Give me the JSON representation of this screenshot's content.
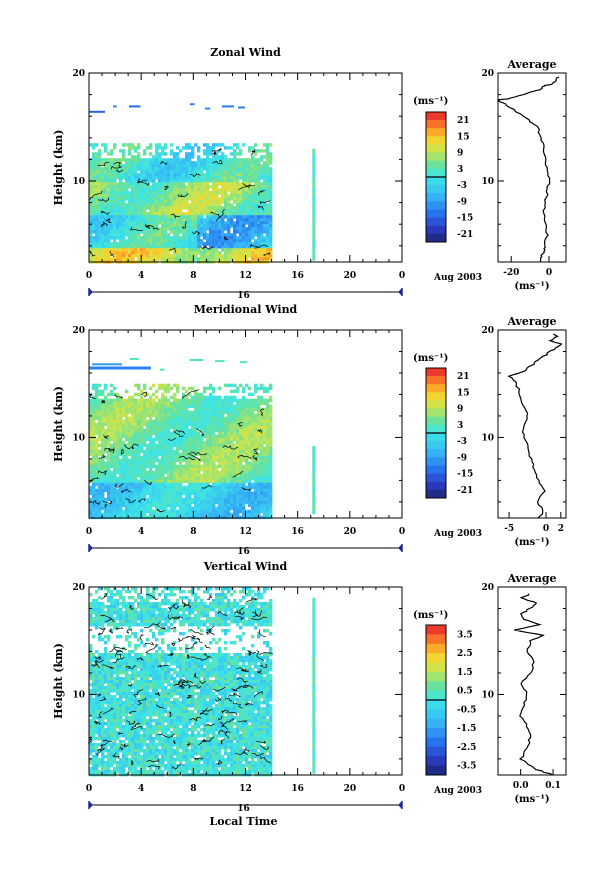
{
  "chart_data": [
    {
      "type": "heatmap",
      "title": "Zonal Wind",
      "ylabel": "Height (km)",
      "ylim": [
        2.5,
        20
      ],
      "xlim": [
        0,
        24
      ],
      "x_ticks": [
        "0",
        "4",
        "8",
        "12",
        "16",
        "20",
        "0"
      ],
      "y_ticks": [
        "10",
        "20"
      ],
      "date_tick": "16",
      "date_label": "Aug 2003",
      "colorbar": {
        "unit": "(ms⁻¹)",
        "ticks": [
          "21",
          "15",
          "9",
          "3",
          "-3",
          "-9",
          "-15",
          "-21"
        ],
        "range": [
          -24,
          24
        ]
      },
      "average": {
        "title": "Average",
        "xlabel": "(ms⁻¹)",
        "x_ticks": [
          "-20",
          "0"
        ],
        "xlim": [
          -27,
          9
        ],
        "y_ticks": [
          "10",
          "20"
        ],
        "profile": [
          [
            -5,
            2.5
          ],
          [
            -4,
            3
          ],
          [
            -3,
            3.5
          ],
          [
            -2,
            4
          ],
          [
            -1,
            5
          ],
          [
            -2,
            6
          ],
          [
            -3,
            7
          ],
          [
            -2,
            8
          ],
          [
            -1,
            9
          ],
          [
            0,
            10
          ],
          [
            -1,
            11
          ],
          [
            -2,
            12
          ],
          [
            -3,
            13
          ],
          [
            -4,
            14
          ],
          [
            -6,
            15
          ],
          [
            -10,
            15.5
          ],
          [
            -14,
            16
          ],
          [
            -18,
            16.5
          ],
          [
            -22,
            17
          ],
          [
            -28,
            17.5
          ],
          [
            -22,
            17.6
          ],
          [
            -14,
            18
          ],
          [
            -8,
            18.3
          ],
          [
            -4,
            18.5
          ],
          [
            -3,
            18.8
          ],
          [
            2,
            19
          ],
          [
            4,
            19.4
          ],
          [
            5,
            19.7
          ]
        ]
      },
      "data_extent": {
        "x_end": 14,
        "y_top": 13.5,
        "isolated_x": 17.2
      }
    },
    {
      "type": "heatmap",
      "title": "Meridional Wind",
      "ylabel": "Height (km)",
      "ylim": [
        2.5,
        20
      ],
      "xlim": [
        0,
        24
      ],
      "x_ticks": [
        "0",
        "4",
        "8",
        "12",
        "16",
        "20",
        "0"
      ],
      "y_ticks": [
        "10",
        "20"
      ],
      "date_tick": "16",
      "date_label": "Aug 2003",
      "colorbar": {
        "unit": "(ms⁻¹)",
        "ticks": [
          "21",
          "15",
          "9",
          "3",
          "-3",
          "-9",
          "-15",
          "-21"
        ],
        "range": [
          -24,
          24
        ]
      },
      "average": {
        "title": "Average",
        "xlabel": "(ms⁻¹)",
        "x_ticks": [
          "-5",
          "0",
          "2"
        ],
        "xlim": [
          -6.5,
          2.7
        ],
        "y_ticks": [
          "10",
          "20"
        ],
        "profile": [
          [
            -1,
            2.5
          ],
          [
            -0.5,
            3
          ],
          [
            -1,
            4
          ],
          [
            -0.3,
            5
          ],
          [
            -1,
            6
          ],
          [
            -1.5,
            7
          ],
          [
            -2,
            8
          ],
          [
            -2.5,
            9
          ],
          [
            -3,
            10
          ],
          [
            -3,
            11
          ],
          [
            -2.5,
            12
          ],
          [
            -3,
            13
          ],
          [
            -3.5,
            14
          ],
          [
            -4,
            15
          ],
          [
            -5,
            15.7
          ],
          [
            -3,
            16.2
          ],
          [
            -2,
            16.7
          ],
          [
            -1,
            17.2
          ],
          [
            0,
            17.7
          ],
          [
            1,
            18.2
          ],
          [
            2,
            18.7
          ],
          [
            0.5,
            19
          ],
          [
            1.5,
            19.4
          ],
          [
            1,
            19.7
          ]
        ]
      },
      "data_extent": {
        "x_end": 14,
        "y_top": 15,
        "isolated_x": 17.2
      }
    },
    {
      "type": "heatmap",
      "title": "Vertical Wind",
      "ylabel": "Height (km)",
      "xlabel": "Local Time",
      "ylim": [
        2.5,
        20
      ],
      "xlim": [
        0,
        24
      ],
      "x_ticks": [
        "0",
        "4",
        "8",
        "12",
        "16",
        "20",
        "0"
      ],
      "y_ticks": [
        "10",
        "20"
      ],
      "date_tick": "16",
      "date_label": "Aug 2003",
      "colorbar": {
        "unit": "(ms⁻¹)",
        "ticks": [
          "3.5",
          "2.5",
          "1.5",
          "0.5",
          "-0.5",
          "-1.5",
          "-2.5",
          "-3.5"
        ],
        "range": [
          -4,
          4
        ]
      },
      "average": {
        "title": "Average",
        "xlabel": "(ms⁻¹)",
        "x_ticks": [
          "0.0",
          "0.1"
        ],
        "xlim": [
          -0.07,
          0.14
        ],
        "y_ticks": [
          "10",
          "20"
        ],
        "profile": [
          [
            0.1,
            2.5
          ],
          [
            0.05,
            3
          ],
          [
            0.0,
            4
          ],
          [
            0.02,
            5
          ],
          [
            0.03,
            6
          ],
          [
            0.02,
            7
          ],
          [
            0.0,
            8
          ],
          [
            0.01,
            9
          ],
          [
            0.02,
            10
          ],
          [
            0.0,
            11
          ],
          [
            0.03,
            12
          ],
          [
            0.04,
            13
          ],
          [
            0.02,
            14
          ],
          [
            0.03,
            15
          ],
          [
            0.07,
            15.5
          ],
          [
            -0.02,
            16
          ],
          [
            0.06,
            16.5
          ],
          [
            0.01,
            17
          ],
          [
            0.0,
            17.5
          ],
          [
            0.03,
            18
          ],
          [
            0.05,
            18.5
          ],
          [
            0.0,
            19
          ],
          [
            0.04,
            19.5
          ]
        ]
      },
      "data_extent": {
        "x_end": 14,
        "y_top": 20,
        "isolated_x": 17.2
      }
    }
  ]
}
